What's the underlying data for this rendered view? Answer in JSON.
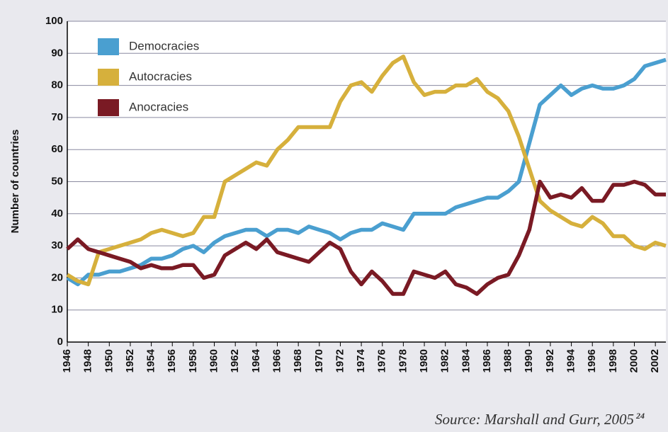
{
  "chart_data": {
    "type": "line",
    "y_label": "Number of countries",
    "source": "Source: Marshall and Gurr, 2005",
    "source_ref": "24",
    "x": [
      1946,
      1947,
      1948,
      1949,
      1950,
      1951,
      1952,
      1953,
      1954,
      1955,
      1956,
      1957,
      1958,
      1959,
      1960,
      1961,
      1962,
      1963,
      1964,
      1965,
      1966,
      1967,
      1968,
      1969,
      1970,
      1971,
      1972,
      1973,
      1974,
      1975,
      1976,
      1977,
      1978,
      1979,
      1980,
      1981,
      1982,
      1983,
      1984,
      1985,
      1986,
      1987,
      1988,
      1989,
      1990,
      1991,
      1992,
      1993,
      1994,
      1995,
      1996,
      1997,
      1998,
      1999,
      2000,
      2001,
      2002,
      2003
    ],
    "series": [
      {
        "name": "Democracies",
        "color": "#4a9fd0",
        "values": [
          20,
          18,
          21,
          21,
          22,
          22,
          23,
          24,
          26,
          26,
          27,
          29,
          30,
          28,
          31,
          33,
          34,
          35,
          35,
          33,
          35,
          35,
          34,
          36,
          35,
          34,
          32,
          34,
          35,
          35,
          37,
          36,
          35,
          40,
          40,
          40,
          40,
          42,
          43,
          44,
          45,
          45,
          47,
          50,
          62,
          74,
          77,
          80,
          77,
          79,
          80,
          79,
          79,
          80,
          82,
          86,
          87,
          88
        ]
      },
      {
        "name": "Autocracies",
        "color": "#d6b03c",
        "values": [
          21,
          19,
          18,
          28,
          29,
          30,
          31,
          32,
          34,
          35,
          34,
          33,
          34,
          39,
          39,
          50,
          52,
          54,
          56,
          55,
          60,
          63,
          67,
          67,
          67,
          67,
          75,
          80,
          81,
          78,
          83,
          87,
          89,
          81,
          77,
          78,
          78,
          80,
          80,
          82,
          78,
          76,
          72,
          64,
          54,
          44,
          41,
          39,
          37,
          36,
          39,
          37,
          33,
          33,
          30,
          29,
          31,
          30
        ]
      },
      {
        "name": "Anocracies",
        "color": "#7a1a24",
        "values": [
          29,
          32,
          29,
          28,
          27,
          26,
          25,
          23,
          24,
          23,
          23,
          24,
          24,
          20,
          21,
          27,
          29,
          31,
          29,
          32,
          28,
          27,
          26,
          25,
          28,
          31,
          29,
          22,
          18,
          22,
          19,
          15,
          15,
          22,
          21,
          20,
          22,
          18,
          17,
          15,
          18,
          20,
          21,
          27,
          35,
          50,
          45,
          46,
          45,
          48,
          44,
          44,
          49,
          49,
          50,
          49,
          46,
          46
        ]
      }
    ],
    "xlim": [
      1946,
      2003
    ],
    "xticks": [
      1946,
      1948,
      1950,
      1952,
      1954,
      1956,
      1958,
      1960,
      1962,
      1964,
      1966,
      1968,
      1970,
      1972,
      1974,
      1976,
      1978,
      1980,
      1982,
      1984,
      1986,
      1988,
      1990,
      1992,
      1994,
      1996,
      1998,
      2000,
      2002
    ],
    "ylim": [
      0,
      100
    ],
    "yticks": [
      0,
      10,
      20,
      30,
      40,
      50,
      60,
      70,
      80,
      90,
      100
    ],
    "grid": true,
    "legend": "upper left"
  }
}
